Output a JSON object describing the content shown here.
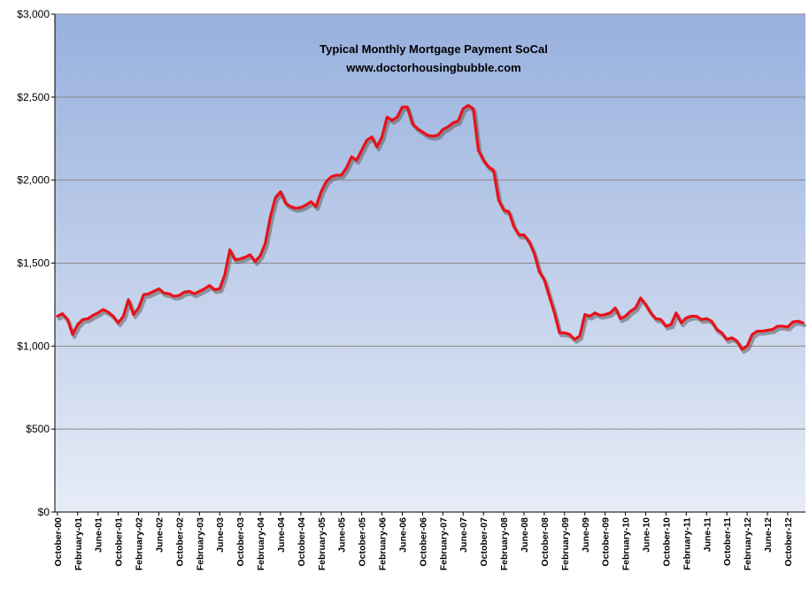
{
  "chart_data": {
    "type": "line",
    "title": "Typical Monthly Mortgage Payment  SoCal",
    "subtitle": "www.doctorhousingbubble.com",
    "xlabel": "",
    "ylabel": "",
    "ylim": [
      0,
      3000
    ],
    "y_ticks": [
      0,
      500,
      1000,
      1500,
      2000,
      2500,
      3000
    ],
    "y_tick_labels": [
      "$0",
      "$500",
      "$1,000",
      "$1,500",
      "$2,000",
      "$2,500",
      "$3,000"
    ],
    "x_tick_labels": [
      "October-00",
      "February-01",
      "June-01",
      "October-01",
      "February-02",
      "June-02",
      "October-02",
      "February-03",
      "June-03",
      "October-03",
      "February-04",
      "June-04",
      "October-04",
      "February-05",
      "June-05",
      "October-05",
      "February-06",
      "June-06",
      "October-06",
      "February-07",
      "June-07",
      "October-07",
      "February-08",
      "June-08",
      "October-08",
      "February-09",
      "June-09",
      "October-09",
      "February-10",
      "June-10",
      "October-10",
      "February-11",
      "June-11",
      "October-11",
      "February-12",
      "June-12",
      "October-12"
    ],
    "grid": true,
    "legend": "none",
    "colors": {
      "line": "#e8121a",
      "line_shadow": "#5f5f5f",
      "plot_top": "#97b0dd",
      "plot_bottom": "#e7ecf7",
      "gridline": "#8a8a8a"
    },
    "series": [
      {
        "months_from_october_2000": [
          0,
          1,
          2,
          3,
          4,
          5,
          6,
          7,
          8,
          9,
          10,
          11,
          12,
          13,
          14,
          15,
          16,
          17,
          18,
          19,
          20,
          21,
          22,
          23,
          24,
          25,
          26,
          27,
          28,
          29,
          30,
          31,
          32,
          33,
          34,
          35,
          36,
          37,
          38,
          39,
          40,
          41,
          42,
          43,
          44,
          45,
          46,
          47,
          48,
          49,
          50,
          51,
          52,
          53,
          54,
          55,
          56,
          57,
          58,
          59,
          60,
          61,
          62,
          63,
          64,
          65,
          66,
          67,
          68,
          69,
          70,
          71,
          72,
          73,
          74,
          75,
          76,
          77,
          78,
          79,
          80,
          81,
          82,
          83,
          84,
          85,
          86,
          87,
          88,
          89,
          90,
          91,
          92,
          93,
          94,
          95,
          96,
          97,
          98,
          99,
          100,
          101,
          102,
          103,
          104,
          105,
          106,
          107,
          108,
          109,
          110,
          111,
          112,
          113,
          114,
          115,
          116,
          117,
          118,
          119,
          120,
          121,
          122,
          123,
          124,
          125,
          126,
          127,
          128,
          129,
          130,
          131,
          132,
          133,
          134,
          135,
          136,
          137,
          138,
          139,
          140,
          141,
          142,
          143,
          144,
          145,
          146,
          147
        ],
        "values": [
          1180,
          1195,
          1160,
          1070,
          1130,
          1160,
          1165,
          1185,
          1200,
          1220,
          1205,
          1180,
          1140,
          1180,
          1280,
          1190,
          1230,
          1310,
          1315,
          1330,
          1345,
          1320,
          1315,
          1300,
          1305,
          1325,
          1330,
          1315,
          1330,
          1345,
          1365,
          1340,
          1345,
          1430,
          1580,
          1520,
          1525,
          1535,
          1550,
          1510,
          1545,
          1620,
          1780,
          1895,
          1930,
          1860,
          1840,
          1830,
          1835,
          1850,
          1870,
          1840,
          1930,
          1990,
          2020,
          2030,
          2030,
          2075,
          2140,
          2120,
          2180,
          2240,
          2260,
          2200,
          2260,
          2380,
          2360,
          2380,
          2440,
          2440,
          2340,
          2310,
          2290,
          2270,
          2265,
          2270,
          2305,
          2320,
          2345,
          2355,
          2430,
          2450,
          2430,
          2180,
          2120,
          2080,
          2060,
          1880,
          1820,
          1810,
          1720,
          1670,
          1670,
          1630,
          1560,
          1450,
          1400,
          1300,
          1200,
          1080,
          1080,
          1070,
          1040,
          1060,
          1190,
          1180,
          1200,
          1185,
          1190,
          1200,
          1230,
          1165,
          1180,
          1210,
          1230,
          1290,
          1250,
          1200,
          1165,
          1160,
          1120,
          1130,
          1200,
          1140,
          1170,
          1180,
          1180,
          1160,
          1165,
          1150,
          1100,
          1080,
          1040,
          1050,
          1030,
          980,
          1000,
          1070,
          1090,
          1090,
          1095,
          1100,
          1120,
          1120,
          1115,
          1145,
          1150,
          1140
        ]
      }
    ]
  }
}
